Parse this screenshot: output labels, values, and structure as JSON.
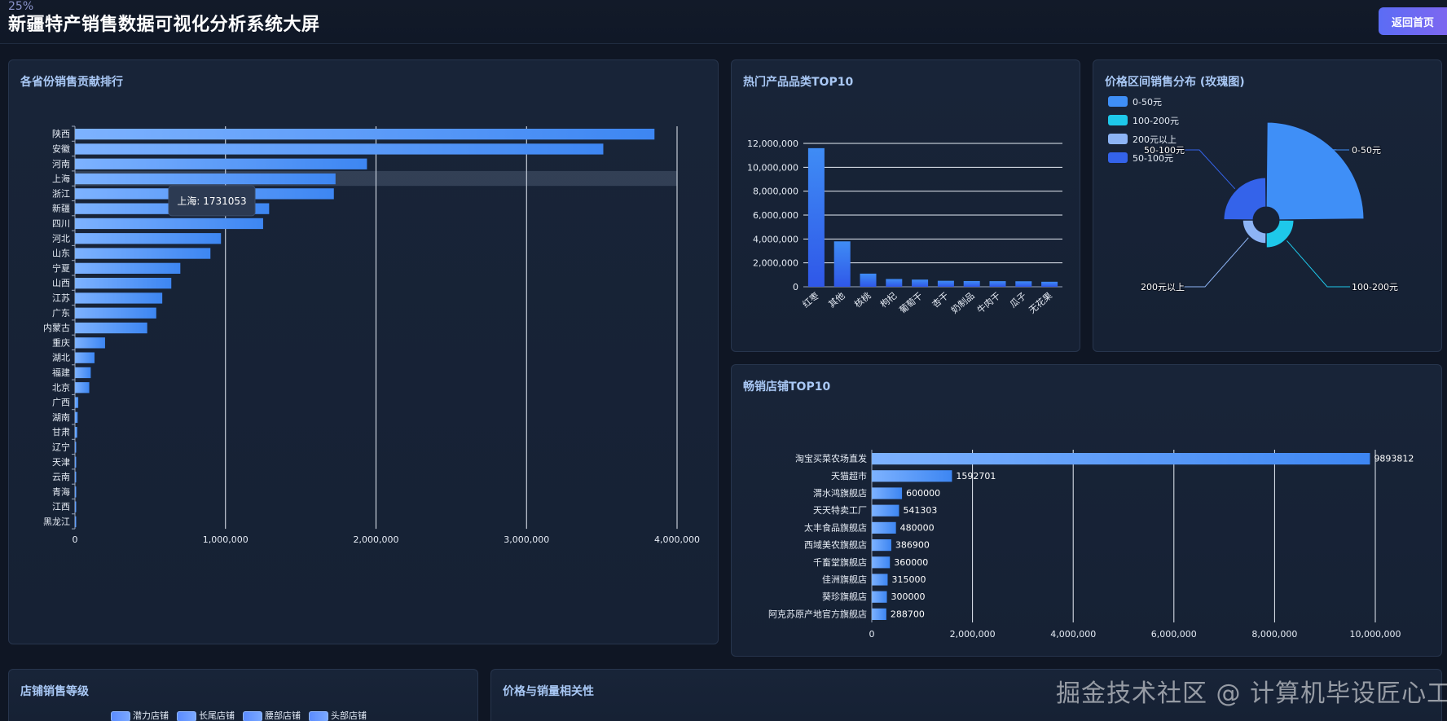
{
  "header": {
    "zoom": "25%",
    "title": "新疆特产销售数据可视化分析系统大屏",
    "home_button": "返回首页"
  },
  "colors": {
    "bar_start": "#7db2ff",
    "bar_end": "#3d86f2",
    "accent": "#5b6cf5",
    "panel_title": "#a9c8f5"
  },
  "panels": {
    "province": {
      "title": "各省份销售贡献排行"
    },
    "category": {
      "title": "热门产品品类TOP10"
    },
    "price": {
      "title": "价格区间销售分布 (玫瑰图)"
    },
    "shops": {
      "title": "畅销店铺TOP10"
    },
    "grade": {
      "title": "店铺销售等级"
    },
    "correlation": {
      "title": "价格与销量相关性"
    }
  },
  "watermark": "掘金技术社区 @ 计算机毕设匠心工作室",
  "chart_data": [
    {
      "id": "province",
      "type": "bar",
      "orientation": "horizontal",
      "title": "各省份销售贡献排行",
      "categories": [
        "陕西",
        "安徽",
        "河南",
        "上海",
        "浙江",
        "新疆",
        "四川",
        "河北",
        "山东",
        "宁夏",
        "山西",
        "江苏",
        "广东",
        "内蒙古",
        "重庆",
        "湖北",
        "福建",
        "北京",
        "广西",
        "湖南",
        "甘肃",
        "辽宁",
        "天津",
        "云南",
        "青海",
        "江西",
        "黑龙江"
      ],
      "values": [
        3850000,
        3510000,
        1940000,
        1731053,
        1720000,
        1290000,
        1250000,
        970000,
        900000,
        700000,
        640000,
        580000,
        540000,
        480000,
        200000,
        130000,
        105000,
        95000,
        22000,
        18000,
        15000,
        8000,
        5000,
        3000,
        2500,
        2000,
        1500
      ],
      "xlim": [
        0,
        4000000
      ],
      "xticks": [
        "0",
        "1,000,000",
        "2,000,000",
        "3,000,000",
        "4,000,000"
      ],
      "tooltip": {
        "category": "上海",
        "text": "上海: 1731053"
      }
    },
    {
      "id": "category",
      "type": "bar",
      "title": "热门产品品类TOP10",
      "categories": [
        "红枣",
        "其他",
        "核桃",
        "枸杞",
        "葡萄干",
        "杏干",
        "奶制品",
        "牛肉干",
        "瓜子",
        "无花果"
      ],
      "values": [
        11600000,
        3800000,
        1100000,
        650000,
        600000,
        500000,
        480000,
        470000,
        460000,
        420000
      ],
      "ylim": [
        0,
        12000000
      ],
      "yticks": [
        "0",
        "2,000,000",
        "4,000,000",
        "6,000,000",
        "8,000,000",
        "10,000,000",
        "12,000,000"
      ]
    },
    {
      "id": "price",
      "type": "pie",
      "variant": "rose",
      "title": "价格区间销售分布 (玫瑰图)",
      "legend": [
        "0-50元",
        "100-200元",
        "200元以上",
        "50-100元"
      ],
      "slices": [
        {
          "name": "0-50元",
          "value": 100,
          "color": "#3f8ff7"
        },
        {
          "name": "100-200元",
          "value": 3,
          "color": "#1ec8ea"
        },
        {
          "name": "200元以上",
          "value": 1.5,
          "color": "#8db4f5"
        },
        {
          "name": "50-100元",
          "value": 12,
          "color": "#3463ea"
        }
      ],
      "labels": {
        "a": "0-50元",
        "b": "100-200元",
        "c": "200元以上",
        "d": "50-100元"
      }
    },
    {
      "id": "shops",
      "type": "bar",
      "orientation": "horizontal",
      "title": "畅销店铺TOP10",
      "categories": [
        "淘宝买菜农场直发",
        "天猫超市",
        "渭水鸿旗舰店",
        "天天特卖工厂",
        "太丰食品旗舰店",
        "西域美农旗舰店",
        "千畜堂旗舰店",
        "佳洲旗舰店",
        "葵珍旗舰店",
        "阿克苏原产地官方旗舰店"
      ],
      "values": [
        9893812,
        1592701,
        600000,
        541303,
        480000,
        386900,
        360000,
        315000,
        300000,
        288700
      ],
      "value_labels": [
        "9893812",
        "1592701",
        "600000",
        "541303",
        "480000",
        "386900",
        "360000",
        "315000",
        "300000",
        "288700"
      ],
      "xlim": [
        0,
        10000000
      ],
      "xticks": [
        "0",
        "2,000,000",
        "4,000,000",
        "6,000,000",
        "8,000,000",
        "10,000,000"
      ]
    },
    {
      "id": "grade",
      "type": "bar",
      "title": "店铺销售等级",
      "legend": [
        "潜力店铺",
        "长尾店铺",
        "腰部店铺",
        "头部店铺"
      ]
    }
  ]
}
